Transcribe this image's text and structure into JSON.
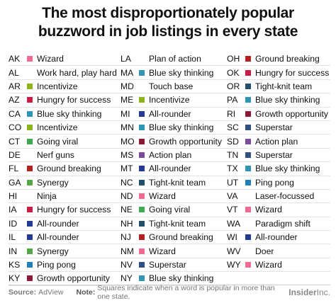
{
  "title_line1": "The most disproportionately popular",
  "title_line2": "buzzword in job listings in every state",
  "footer": {
    "source_label": "Source:",
    "source": "AdView",
    "note_label": "Note:",
    "note": "Squares indicate when a word is popular in more than one state.",
    "logo_main": "Insider",
    "logo_suffix": "Inc."
  },
  "colors": {
    "Wizard": "#f06a92",
    "Incentivize": "#8bb51a",
    "Hungry for success": "#c81c45",
    "Blue sky thinking": "#2e95b5",
    "Going viral": "#3fa853",
    "Ground breaking": "#b4201f",
    "Synergy": "#56a648",
    "All-rounder": "#243a95",
    "Ping pong": "#1f7fb6",
    "Growth opportunity": "#8a1a36",
    "Action plan": "#7a4c9e",
    "Tight-knit team": "#234f6b",
    "Superstar": "#2f4f80"
  },
  "chart_data": {
    "type": "table",
    "columns": [
      [
        {
          "state": "AK",
          "word": "Wizard"
        },
        {
          "state": "AL",
          "word": "Work hard, play hard"
        },
        {
          "state": "AR",
          "word": "Incentivize"
        },
        {
          "state": "AZ",
          "word": "Hungry for success"
        },
        {
          "state": "CA",
          "word": "Blue sky thinking"
        },
        {
          "state": "CO",
          "word": "Incentivize"
        },
        {
          "state": "CT",
          "word": "Going viral"
        },
        {
          "state": "DE",
          "word": "Nerf guns"
        },
        {
          "state": "FL",
          "word": "Ground breaking"
        },
        {
          "state": "GA",
          "word": "Synergy"
        },
        {
          "state": "HI",
          "word": "Ninja"
        },
        {
          "state": "IA",
          "word": "Hungry for success"
        },
        {
          "state": "ID",
          "word": "All-rounder"
        },
        {
          "state": "IL",
          "word": "All-rounder"
        },
        {
          "state": "IN",
          "word": "Synergy"
        },
        {
          "state": "KS",
          "word": "Ping pong"
        },
        {
          "state": "KY",
          "word": "Growth opportunity"
        }
      ],
      [
        {
          "state": "LA",
          "word": "Plan of action"
        },
        {
          "state": "MA",
          "word": "Blue sky thinking"
        },
        {
          "state": "MD",
          "word": "Touch base"
        },
        {
          "state": "ME",
          "word": "Incentivize"
        },
        {
          "state": "MI",
          "word": "All-rounder"
        },
        {
          "state": "MN",
          "word": "Blue sky thinking"
        },
        {
          "state": "MO",
          "word": "Growth opportunity"
        },
        {
          "state": "MS",
          "word": "Action plan"
        },
        {
          "state": "MT",
          "word": "All-rounder"
        },
        {
          "state": "NC",
          "word": "Tight-knit team"
        },
        {
          "state": "ND",
          "word": "Wizard"
        },
        {
          "state": "NE",
          "word": "Going viral"
        },
        {
          "state": "NH",
          "word": "Tight-knit team"
        },
        {
          "state": "NJ",
          "word": "Ground breaking"
        },
        {
          "state": "NM",
          "word": "Wizard"
        },
        {
          "state": "NV",
          "word": "Superstar"
        },
        {
          "state": "NY",
          "word": "Blue sky thinking"
        }
      ],
      [
        {
          "state": "OH",
          "word": "Ground breaking"
        },
        {
          "state": "OK",
          "word": "Hungry for success"
        },
        {
          "state": "OR",
          "word": "Tight-knit team"
        },
        {
          "state": "PA",
          "word": "Blue sky thinking"
        },
        {
          "state": "RI",
          "word": "Growth opportunity"
        },
        {
          "state": "SC",
          "word": "Superstar"
        },
        {
          "state": "SD",
          "word": "Action plan"
        },
        {
          "state": "TN",
          "word": "Superstar"
        },
        {
          "state": "TX",
          "word": "Blue sky thinking"
        },
        {
          "state": "UT",
          "word": "Ping pong"
        },
        {
          "state": "VA",
          "word": "Laser-focussed"
        },
        {
          "state": "VT",
          "word": "Wizard"
        },
        {
          "state": "WA",
          "word": "Paradigm shift"
        },
        {
          "state": "WI",
          "word": "All-rounder"
        },
        {
          "state": "WV",
          "word": "Doer"
        },
        {
          "state": "WY",
          "word": "Wizard"
        }
      ]
    ]
  }
}
